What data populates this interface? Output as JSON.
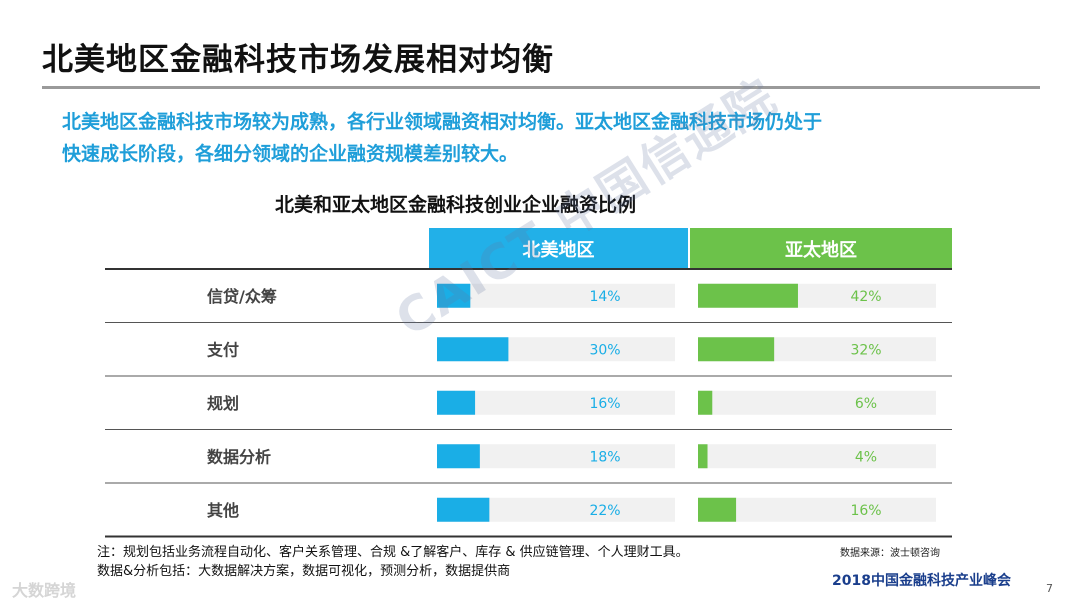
{
  "slide": {
    "title": "北美地区金融科技市场发展相对均衡",
    "summary_line1": "北美地区金融科技市场较为成熟，各行业领域融资相对均衡。亚太地区金融科技市场仍处于",
    "summary_line2": "快速成长阶段，各细分领域的企业融资规模差别较大。",
    "note_line1": "注：规划包括业务流程自动化、客户关系管理、合规 &了解客户、库存 & 供应链管理、个人理财工具。",
    "note_line2": "数据&分析包括：大数据解决方案，数据可视化，预测分析，数据提供商",
    "source": "数据来源：波士顿咨询",
    "event": "2018中国金融科技产业峰会",
    "page_number": "7",
    "watermark": "CAICT 中国信通院",
    "brand": "大数跨境"
  },
  "chart_data": {
    "type": "bar",
    "title": "北美和亚太地区金融科技创业企业融资比例",
    "categories": [
      "信贷/众筹",
      "支付",
      "规划",
      "数据分析",
      "其他"
    ],
    "series": [
      {
        "name": "北美地区",
        "values": [
          14,
          30,
          16,
          18,
          22
        ],
        "labels": [
          "14%",
          "30%",
          "16%",
          "18%",
          "22%"
        ],
        "color": "#1aaee6",
        "header_color": "#22b0e8"
      },
      {
        "name": "亚太地区",
        "values": [
          42,
          32,
          6,
          4,
          16
        ],
        "labels": [
          "42%",
          "32%",
          "6%",
          "4%",
          "16%"
        ],
        "color": "#6cc24a",
        "header_color": "#6cc24a"
      }
    ],
    "xlim": [
      0,
      100
    ],
    "unit": "%"
  }
}
